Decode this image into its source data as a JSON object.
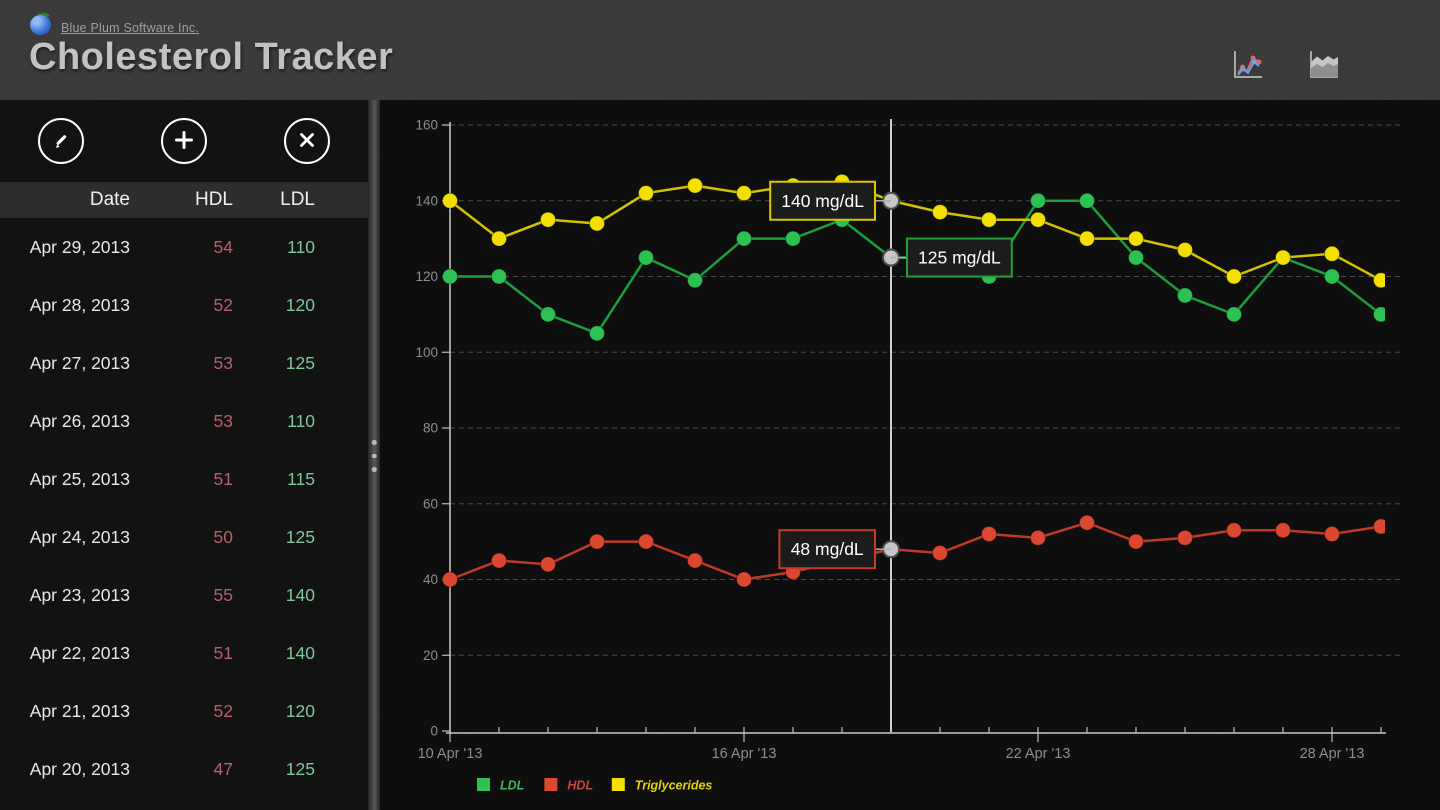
{
  "header": {
    "company": "Blue Plum Software Inc.",
    "title": "Cholesterol Tracker",
    "view_icons": [
      "line-chart-view",
      "area-chart-view"
    ]
  },
  "sidebar": {
    "toolbar": {
      "buttons": [
        "edit",
        "add",
        "delete"
      ]
    },
    "table": {
      "columns": [
        "Date",
        "HDL",
        "LDL"
      ],
      "hdl_color": "#b8606b",
      "ldl_color": "#80c79b",
      "rows": [
        {
          "date": "Apr 29, 2013",
          "hdl": "54",
          "ldl": "110"
        },
        {
          "date": "Apr 28, 2013",
          "hdl": "52",
          "ldl": "120"
        },
        {
          "date": "Apr 27, 2013",
          "hdl": "53",
          "ldl": "125"
        },
        {
          "date": "Apr 26, 2013",
          "hdl": "53",
          "ldl": "110"
        },
        {
          "date": "Apr 25, 2013",
          "hdl": "51",
          "ldl": "115"
        },
        {
          "date": "Apr 24, 2013",
          "hdl": "50",
          "ldl": "125"
        },
        {
          "date": "Apr 23, 2013",
          "hdl": "55",
          "ldl": "140"
        },
        {
          "date": "Apr 22, 2013",
          "hdl": "51",
          "ldl": "140"
        },
        {
          "date": "Apr 21, 2013",
          "hdl": "52",
          "ldl": "120"
        },
        {
          "date": "Apr 20, 2013",
          "hdl": "47",
          "ldl": "125"
        }
      ]
    }
  },
  "chart_data": {
    "type": "line",
    "x": [
      "Apr 10",
      "Apr 11",
      "Apr 12",
      "Apr 13",
      "Apr 14",
      "Apr 15",
      "Apr 16",
      "Apr 17",
      "Apr 18",
      "Apr 19",
      "Apr 20",
      "Apr 21",
      "Apr 22",
      "Apr 23",
      "Apr 24",
      "Apr 25",
      "Apr 26",
      "Apr 27",
      "Apr 28",
      "Apr 29"
    ],
    "x_tick_labels": [
      {
        "i": 0,
        "label": "10 Apr '13"
      },
      {
        "i": 6,
        "label": "16 Apr '13"
      },
      {
        "i": 12,
        "label": "22 Apr '13"
      },
      {
        "i": 18,
        "label": "28 Apr '13"
      }
    ],
    "ylim": [
      0,
      160
    ],
    "y_ticks": [
      0,
      20,
      40,
      60,
      80,
      100,
      120,
      140,
      160
    ],
    "grid": true,
    "series": [
      {
        "name": "LDL",
        "line_color": "#1e9d3c",
        "point_color": "#2cc152",
        "values": [
          120,
          120,
          110,
          105,
          125,
          119,
          130,
          130,
          135,
          125,
          125,
          120,
          140,
          140,
          125,
          115,
          110,
          125,
          120,
          110
        ]
      },
      {
        "name": "HDL",
        "line_color": "#c03a27",
        "point_color": "#dc4731",
        "values": [
          40,
          45,
          44,
          50,
          50,
          45,
          40,
          42,
          45,
          48,
          47,
          52,
          51,
          55,
          50,
          51,
          53,
          53,
          52,
          54
        ]
      },
      {
        "name": "Triglycerides",
        "line_color": "#d2c300",
        "point_color": "#f3df00",
        "values": [
          140,
          130,
          135,
          134,
          142,
          144,
          142,
          144,
          145,
          140,
          137,
          135,
          135,
          130,
          130,
          127,
          120,
          125,
          126,
          119
        ]
      }
    ],
    "cursor": {
      "index": 9,
      "tooltips": [
        {
          "series": "Triglycerides",
          "value": 140,
          "label": "140 mg/dL",
          "side": "left",
          "border": "#d9c700"
        },
        {
          "series": "LDL",
          "value": 125,
          "label": "125 mg/dL",
          "side": "right",
          "border": "#23a13f"
        },
        {
          "series": "HDL",
          "value": 48,
          "label": "48 mg/dL",
          "side": "left",
          "border": "#c43b28"
        }
      ]
    },
    "legend": [
      {
        "label": "LDL",
        "color": "#2cc152",
        "text_color": "#3db85a"
      },
      {
        "label": "HDL",
        "color": "#dc4731",
        "text_color": "#c9473a"
      },
      {
        "label": "Triglycerides",
        "color": "#f3df00",
        "text_color": "#e5d400"
      }
    ],
    "legend_position": "bottom"
  }
}
